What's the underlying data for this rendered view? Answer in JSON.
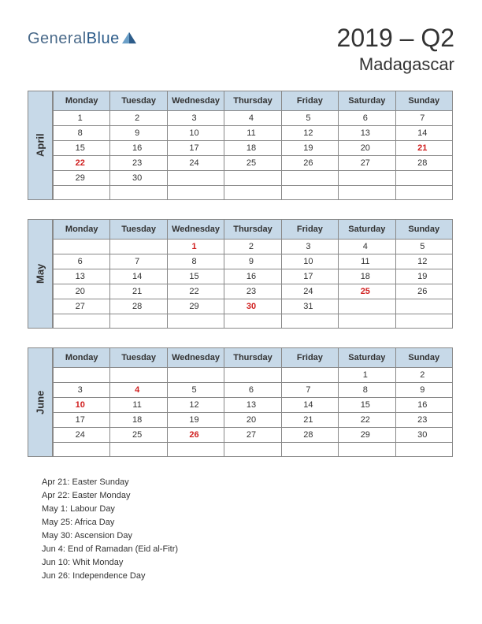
{
  "logo": {
    "word1": "General",
    "word2": "Blue"
  },
  "title": "2019 – Q2",
  "subtitle": "Madagascar",
  "colors": {
    "header_bg": "#c7d9e8",
    "border": "#888888",
    "holiday": "#d02020",
    "text": "#333333",
    "bg": "#ffffff"
  },
  "dayHeaders": [
    "Monday",
    "Tuesday",
    "Wednesday",
    "Thursday",
    "Friday",
    "Saturday",
    "Sunday"
  ],
  "months": [
    {
      "name": "April",
      "weeks": [
        [
          {
            "d": "1"
          },
          {
            "d": "2"
          },
          {
            "d": "3"
          },
          {
            "d": "4"
          },
          {
            "d": "5"
          },
          {
            "d": "6"
          },
          {
            "d": "7"
          }
        ],
        [
          {
            "d": "8"
          },
          {
            "d": "9"
          },
          {
            "d": "10"
          },
          {
            "d": "11"
          },
          {
            "d": "12"
          },
          {
            "d": "13"
          },
          {
            "d": "14"
          }
        ],
        [
          {
            "d": "15"
          },
          {
            "d": "16"
          },
          {
            "d": "17"
          },
          {
            "d": "18"
          },
          {
            "d": "19"
          },
          {
            "d": "20"
          },
          {
            "d": "21",
            "h": true
          }
        ],
        [
          {
            "d": "22",
            "h": true
          },
          {
            "d": "23"
          },
          {
            "d": "24"
          },
          {
            "d": "25"
          },
          {
            "d": "26"
          },
          {
            "d": "27"
          },
          {
            "d": "28"
          }
        ],
        [
          {
            "d": "29"
          },
          {
            "d": "30"
          },
          {
            "d": ""
          },
          {
            "d": ""
          },
          {
            "d": ""
          },
          {
            "d": ""
          },
          {
            "d": ""
          }
        ],
        [
          {
            "d": ""
          },
          {
            "d": ""
          },
          {
            "d": ""
          },
          {
            "d": ""
          },
          {
            "d": ""
          },
          {
            "d": ""
          },
          {
            "d": ""
          }
        ]
      ]
    },
    {
      "name": "May",
      "weeks": [
        [
          {
            "d": ""
          },
          {
            "d": ""
          },
          {
            "d": "1",
            "h": true
          },
          {
            "d": "2"
          },
          {
            "d": "3"
          },
          {
            "d": "4"
          },
          {
            "d": "5"
          }
        ],
        [
          {
            "d": "6"
          },
          {
            "d": "7"
          },
          {
            "d": "8"
          },
          {
            "d": "9"
          },
          {
            "d": "10"
          },
          {
            "d": "11"
          },
          {
            "d": "12"
          }
        ],
        [
          {
            "d": "13"
          },
          {
            "d": "14"
          },
          {
            "d": "15"
          },
          {
            "d": "16"
          },
          {
            "d": "17"
          },
          {
            "d": "18"
          },
          {
            "d": "19"
          }
        ],
        [
          {
            "d": "20"
          },
          {
            "d": "21"
          },
          {
            "d": "22"
          },
          {
            "d": "23"
          },
          {
            "d": "24"
          },
          {
            "d": "25",
            "h": true
          },
          {
            "d": "26"
          }
        ],
        [
          {
            "d": "27"
          },
          {
            "d": "28"
          },
          {
            "d": "29"
          },
          {
            "d": "30",
            "h": true
          },
          {
            "d": "31"
          },
          {
            "d": ""
          },
          {
            "d": ""
          }
        ],
        [
          {
            "d": ""
          },
          {
            "d": ""
          },
          {
            "d": ""
          },
          {
            "d": ""
          },
          {
            "d": ""
          },
          {
            "d": ""
          },
          {
            "d": ""
          }
        ]
      ]
    },
    {
      "name": "June",
      "weeks": [
        [
          {
            "d": ""
          },
          {
            "d": ""
          },
          {
            "d": ""
          },
          {
            "d": ""
          },
          {
            "d": ""
          },
          {
            "d": "1"
          },
          {
            "d": "2"
          }
        ],
        [
          {
            "d": "3"
          },
          {
            "d": "4",
            "h": true
          },
          {
            "d": "5"
          },
          {
            "d": "6"
          },
          {
            "d": "7"
          },
          {
            "d": "8"
          },
          {
            "d": "9"
          }
        ],
        [
          {
            "d": "10",
            "h": true
          },
          {
            "d": "11"
          },
          {
            "d": "12"
          },
          {
            "d": "13"
          },
          {
            "d": "14"
          },
          {
            "d": "15"
          },
          {
            "d": "16"
          }
        ],
        [
          {
            "d": "17"
          },
          {
            "d": "18"
          },
          {
            "d": "19"
          },
          {
            "d": "20"
          },
          {
            "d": "21"
          },
          {
            "d": "22"
          },
          {
            "d": "23"
          }
        ],
        [
          {
            "d": "24"
          },
          {
            "d": "25"
          },
          {
            "d": "26",
            "h": true
          },
          {
            "d": "27"
          },
          {
            "d": "28"
          },
          {
            "d": "29"
          },
          {
            "d": "30"
          }
        ],
        [
          {
            "d": ""
          },
          {
            "d": ""
          },
          {
            "d": ""
          },
          {
            "d": ""
          },
          {
            "d": ""
          },
          {
            "d": ""
          },
          {
            "d": ""
          }
        ]
      ]
    }
  ],
  "holidays": [
    "Apr 21: Easter Sunday",
    "Apr 22: Easter Monday",
    "May 1: Labour Day",
    "May 25: Africa Day",
    "May 30: Ascension Day",
    "Jun 4: End of Ramadan (Eid al-Fitr)",
    "Jun 10: Whit Monday",
    "Jun 26: Independence Day"
  ]
}
